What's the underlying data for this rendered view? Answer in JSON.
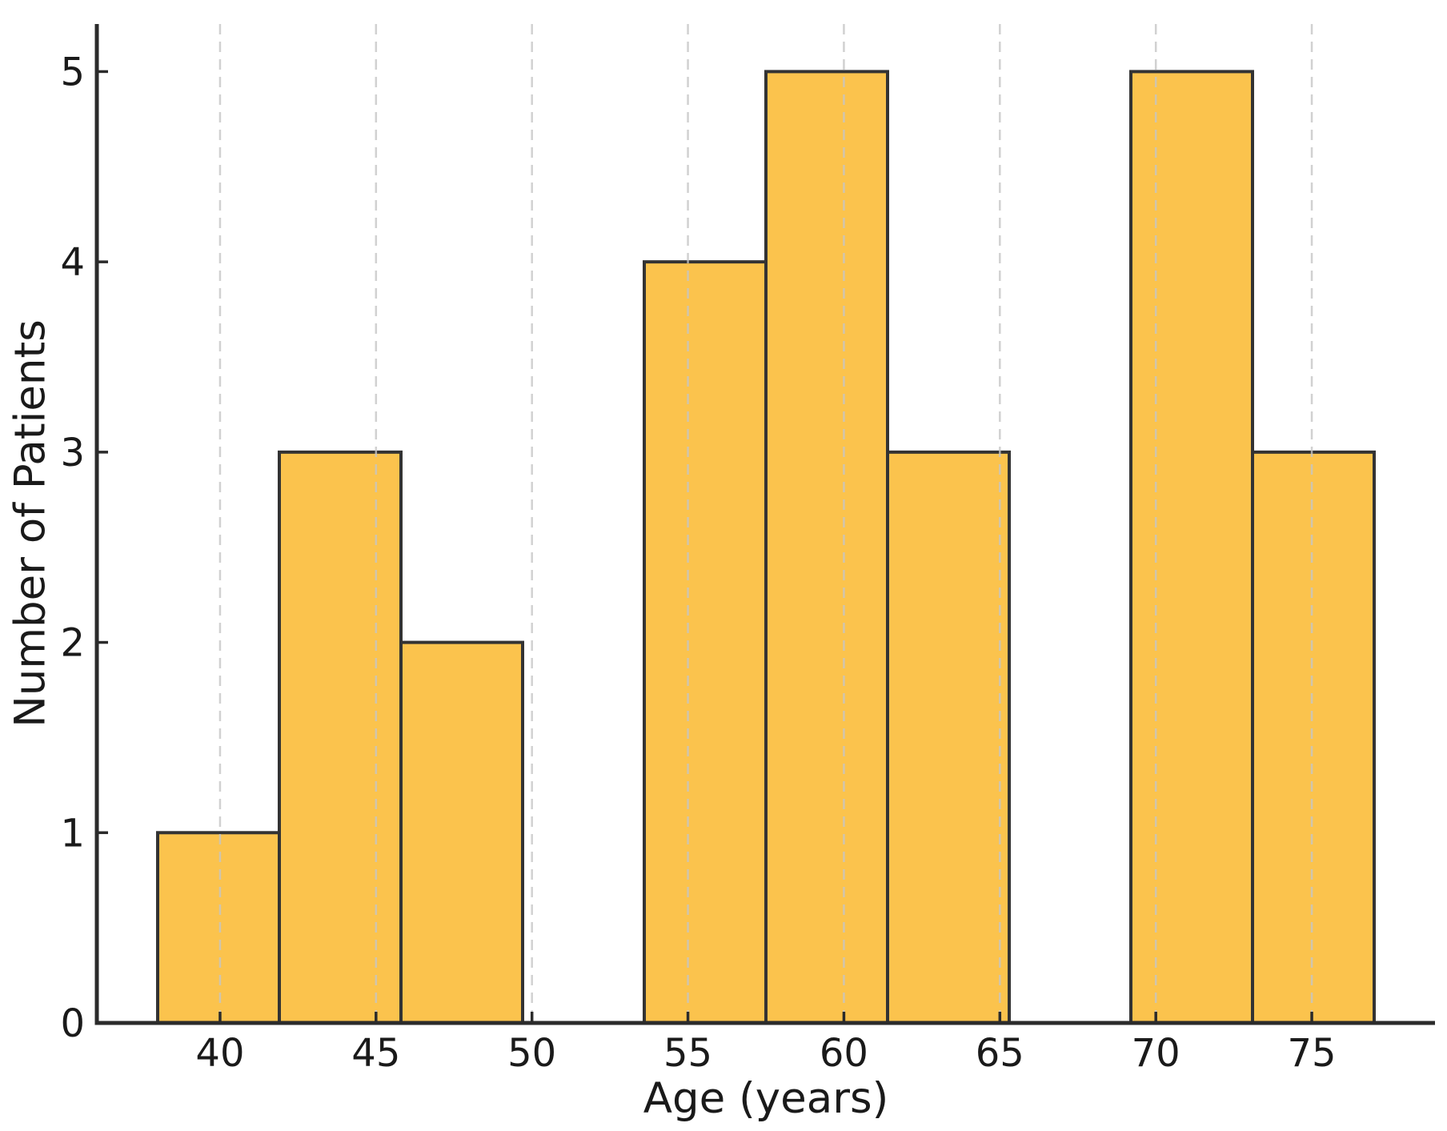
{
  "figure": {
    "background": "#ffffff"
  },
  "chart_data": {
    "type": "bar",
    "subtype": "histogram",
    "title": "",
    "xlabel": "Age (years)",
    "ylabel": "Number of Patients",
    "bin_edges": [
      38.0,
      41.9,
      45.8,
      49.7,
      53.6,
      57.5,
      61.4,
      65.3,
      69.2,
      73.1,
      77.0
    ],
    "counts": [
      1,
      3,
      2,
      0,
      4,
      5,
      3,
      0,
      5,
      3
    ],
    "total_patients": 26,
    "xlim": [
      36.05,
      78.95
    ],
    "ylim": [
      0,
      5.25
    ],
    "xticks": [
      40,
      45,
      50,
      55,
      60,
      65,
      70,
      75
    ],
    "yticks": [
      0,
      1,
      2,
      3,
      4,
      5
    ],
    "grid": {
      "x": true,
      "y": false,
      "style": "dashed",
      "over_bars": true
    },
    "legend": null,
    "colors": {
      "bar_fill": "#FBC34D",
      "bar_edge": "#333333",
      "gridline": "#C6C6C6",
      "spine": "#2B2B2B",
      "tick": "#2B2B2B",
      "text": "#1A1A1A"
    }
  }
}
